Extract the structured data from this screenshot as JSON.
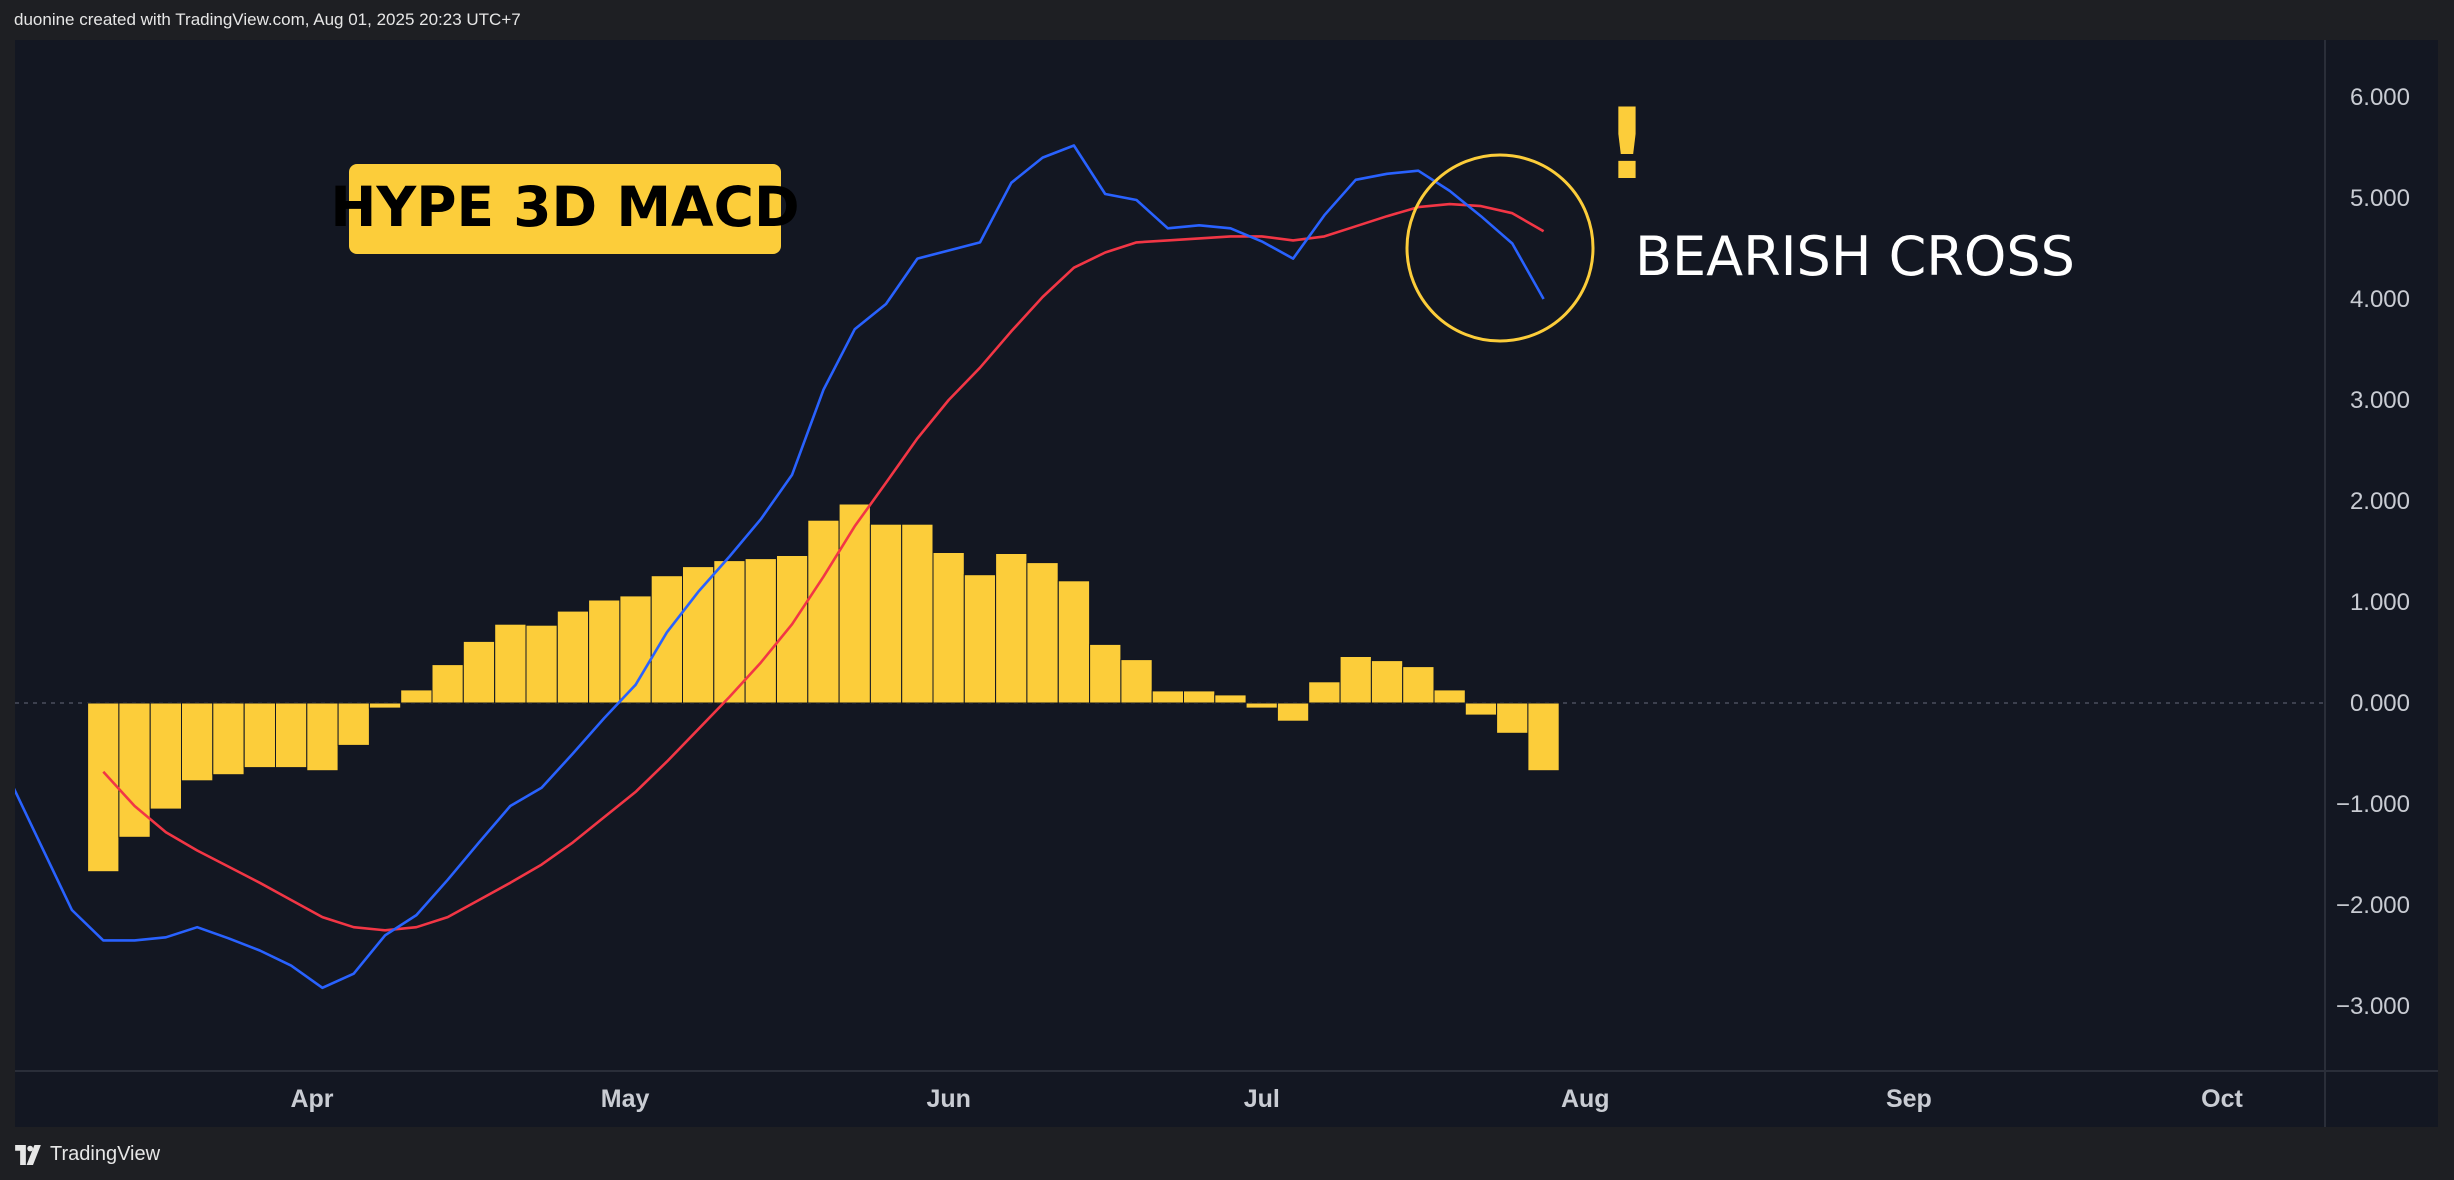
{
  "header": {
    "attribution": "duonine created with TradingView.com, Aug 01, 2025 20:23 UTC+7"
  },
  "footer": {
    "brand": "TradingView",
    "logo_icon": "tradingview-logo-icon"
  },
  "annotations": {
    "title_badge": "HYPE 3D MACD",
    "cross_label": "BEARISH CROSS",
    "exclamation": "!",
    "badge_color": "#fccd3a",
    "circle_color": "#fccd3a"
  },
  "chart_data": {
    "type": "line",
    "title": "HYPE 3D MACD",
    "x_ticks": [
      "Apr",
      "May",
      "Jun",
      "Jul",
      "Aug",
      "Sep",
      "Oct"
    ],
    "ylim": [
      -3.6,
      6.6
    ],
    "y_ticks": [
      "6.000",
      "5.000",
      "4.000",
      "3.000",
      "2.000",
      "1.000",
      "0.000",
      "−1.000",
      "−2.000",
      "−3.000"
    ],
    "grid": false,
    "zero_line": true,
    "series": [
      {
        "name": "",
        "kind": "line",
        "color": "#2962ff",
        "points": [
          [
            "2025-03-03",
            -0.75
          ],
          [
            "2025-03-06",
            -1.4
          ],
          [
            "2025-03-09",
            -2.05
          ],
          [
            "2025-03-12",
            -2.35
          ],
          [
            "2025-03-15",
            -2.35
          ],
          [
            "2025-03-18",
            -2.32
          ],
          [
            "2025-03-21",
            -2.22
          ],
          [
            "2025-03-24",
            -2.33
          ],
          [
            "2025-03-27",
            -2.45
          ],
          [
            "2025-03-30",
            -2.6
          ],
          [
            "2025-04-02",
            -2.82
          ],
          [
            "2025-04-05",
            -2.68
          ],
          [
            "2025-04-08",
            -2.3
          ],
          [
            "2025-04-11",
            -2.1
          ],
          [
            "2025-04-14",
            -1.75
          ],
          [
            "2025-04-17",
            -1.38
          ],
          [
            "2025-04-20",
            -1.02
          ],
          [
            "2025-04-23",
            -0.84
          ],
          [
            "2025-04-26",
            -0.5
          ],
          [
            "2025-04-29",
            -0.15
          ],
          [
            "2025-05-02",
            0.18
          ],
          [
            "2025-05-05",
            0.7
          ],
          [
            "2025-05-08",
            1.1
          ],
          [
            "2025-05-11",
            1.45
          ],
          [
            "2025-05-14",
            1.82
          ],
          [
            "2025-05-17",
            2.26
          ],
          [
            "2025-05-20",
            3.1
          ],
          [
            "2025-05-23",
            3.7
          ],
          [
            "2025-05-26",
            3.95
          ],
          [
            "2025-05-29",
            4.4
          ],
          [
            "2025-06-01",
            4.48
          ],
          [
            "2025-06-04",
            4.56
          ],
          [
            "2025-06-07",
            5.15
          ],
          [
            "2025-06-10",
            5.4
          ],
          [
            "2025-06-13",
            5.52
          ],
          [
            "2025-06-16",
            5.04
          ],
          [
            "2025-06-19",
            4.98
          ],
          [
            "2025-06-22",
            4.7
          ],
          [
            "2025-06-25",
            4.73
          ],
          [
            "2025-06-28",
            4.7
          ],
          [
            "2025-07-01",
            4.57
          ],
          [
            "2025-07-04",
            4.4
          ],
          [
            "2025-07-07",
            4.83
          ],
          [
            "2025-07-10",
            5.18
          ],
          [
            "2025-07-13",
            5.24
          ],
          [
            "2025-07-16",
            5.27
          ],
          [
            "2025-07-19",
            5.07
          ],
          [
            "2025-07-22",
            4.82
          ],
          [
            "2025-07-25",
            4.55
          ],
          [
            "2025-07-28",
            4.0
          ]
        ]
      },
      {
        "name": "",
        "kind": "line",
        "color": "#f23645",
        "points": [
          [
            "2025-03-12",
            -0.68
          ],
          [
            "2025-03-15",
            -1.02
          ],
          [
            "2025-03-18",
            -1.28
          ],
          [
            "2025-03-21",
            -1.46
          ],
          [
            "2025-03-24",
            -1.62
          ],
          [
            "2025-03-27",
            -1.78
          ],
          [
            "2025-03-30",
            -1.95
          ],
          [
            "2025-04-02",
            -2.12
          ],
          [
            "2025-04-05",
            -2.22
          ],
          [
            "2025-04-08",
            -2.25
          ],
          [
            "2025-04-11",
            -2.22
          ],
          [
            "2025-04-14",
            -2.12
          ],
          [
            "2025-04-17",
            -1.95
          ],
          [
            "2025-04-20",
            -1.78
          ],
          [
            "2025-04-23",
            -1.6
          ],
          [
            "2025-04-26",
            -1.38
          ],
          [
            "2025-04-29",
            -1.13
          ],
          [
            "2025-05-02",
            -0.88
          ],
          [
            "2025-05-05",
            -0.58
          ],
          [
            "2025-05-08",
            -0.26
          ],
          [
            "2025-05-11",
            0.06
          ],
          [
            "2025-05-14",
            0.4
          ],
          [
            "2025-05-17",
            0.78
          ],
          [
            "2025-05-20",
            1.25
          ],
          [
            "2025-05-23",
            1.75
          ],
          [
            "2025-05-26",
            2.18
          ],
          [
            "2025-05-29",
            2.62
          ],
          [
            "2025-06-01",
            3.0
          ],
          [
            "2025-06-04",
            3.32
          ],
          [
            "2025-06-07",
            3.68
          ],
          [
            "2025-06-10",
            4.02
          ],
          [
            "2025-06-13",
            4.31
          ],
          [
            "2025-06-16",
            4.46
          ],
          [
            "2025-06-19",
            4.56
          ],
          [
            "2025-06-22",
            4.58
          ],
          [
            "2025-06-25",
            4.6
          ],
          [
            "2025-06-28",
            4.62
          ],
          [
            "2025-07-01",
            4.62
          ],
          [
            "2025-07-04",
            4.58
          ],
          [
            "2025-07-07",
            4.62
          ],
          [
            "2025-07-10",
            4.72
          ],
          [
            "2025-07-13",
            4.82
          ],
          [
            "2025-07-16",
            4.91
          ],
          [
            "2025-07-19",
            4.94
          ],
          [
            "2025-07-22",
            4.92
          ],
          [
            "2025-07-25",
            4.85
          ],
          [
            "2025-07-28",
            4.67
          ]
        ]
      },
      {
        "name": "",
        "kind": "histogram",
        "color": "#fccd3a",
        "bar_days": 3,
        "points": [
          [
            "2025-03-12",
            -1.67
          ],
          [
            "2025-03-15",
            -1.33
          ],
          [
            "2025-03-18",
            -1.05
          ],
          [
            "2025-03-21",
            -0.77
          ],
          [
            "2025-03-24",
            -0.71
          ],
          [
            "2025-03-27",
            -0.64
          ],
          [
            "2025-03-30",
            -0.64
          ],
          [
            "2025-04-02",
            -0.67
          ],
          [
            "2025-04-05",
            -0.42
          ],
          [
            "2025-04-08",
            -0.05
          ],
          [
            "2025-04-11",
            0.13
          ],
          [
            "2025-04-14",
            0.38
          ],
          [
            "2025-04-17",
            0.61
          ],
          [
            "2025-04-20",
            0.78
          ],
          [
            "2025-04-23",
            0.77
          ],
          [
            "2025-04-26",
            0.91
          ],
          [
            "2025-04-29",
            1.02
          ],
          [
            "2025-05-02",
            1.06
          ],
          [
            "2025-05-05",
            1.26
          ],
          [
            "2025-05-08",
            1.35
          ],
          [
            "2025-05-11",
            1.41
          ],
          [
            "2025-05-14",
            1.43
          ],
          [
            "2025-05-17",
            1.46
          ],
          [
            "2025-05-20",
            1.81
          ],
          [
            "2025-05-23",
            1.97
          ],
          [
            "2025-05-26",
            1.77
          ],
          [
            "2025-05-29",
            1.77
          ],
          [
            "2025-06-01",
            1.49
          ],
          [
            "2025-06-04",
            1.27
          ],
          [
            "2025-06-07",
            1.48
          ],
          [
            "2025-06-10",
            1.39
          ],
          [
            "2025-06-13",
            1.21
          ],
          [
            "2025-06-16",
            0.58
          ],
          [
            "2025-06-19",
            0.43
          ],
          [
            "2025-06-22",
            0.12
          ],
          [
            "2025-06-25",
            0.12
          ],
          [
            "2025-06-28",
            0.08
          ],
          [
            "2025-07-01",
            -0.05
          ],
          [
            "2025-07-04",
            -0.18
          ],
          [
            "2025-07-07",
            0.21
          ],
          [
            "2025-07-10",
            0.46
          ],
          [
            "2025-07-13",
            0.42
          ],
          [
            "2025-07-16",
            0.36
          ],
          [
            "2025-07-19",
            0.13
          ],
          [
            "2025-07-22",
            -0.12
          ],
          [
            "2025-07-25",
            -0.3
          ],
          [
            "2025-07-28",
            -0.67
          ]
        ]
      }
    ]
  }
}
